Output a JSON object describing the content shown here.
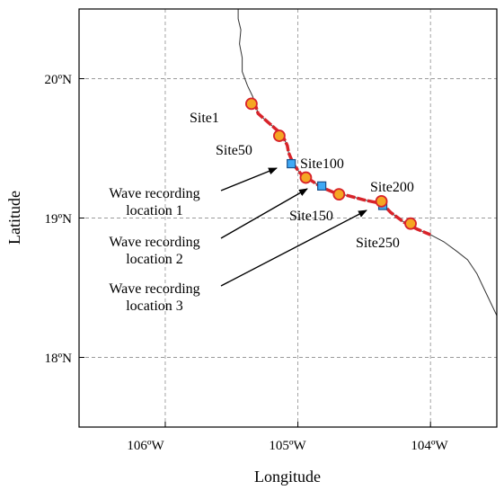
{
  "map": {
    "axes": {
      "xlabel": "Longitude",
      "ylabel": "Latitude",
      "xlim": [
        -106.65,
        -103.5
      ],
      "ylim": [
        17.5,
        20.5
      ],
      "x_ticks": [
        {
          "value": -106,
          "label": "106ºW"
        },
        {
          "value": -105,
          "label": "105ºW"
        },
        {
          "value": -104,
          "label": "104ºW"
        }
      ],
      "y_ticks": [
        {
          "value": 20,
          "label": "20ºN"
        },
        {
          "value": 19,
          "label": "19ºN"
        },
        {
          "value": 18,
          "label": "18ºN"
        }
      ],
      "grid": true
    },
    "colors": {
      "coastline": "#333333",
      "monitored_coast": "#d8232a",
      "site_fill": "#f5a623",
      "site_stroke": "#d8232a",
      "wave_marker_fill": "#3fa9f5",
      "wave_marker_stroke": "#1a4f8a"
    },
    "coastline": [
      [
        -105.45,
        20.5
      ],
      [
        -105.45,
        20.43
      ],
      [
        -105.43,
        20.35
      ],
      [
        -105.44,
        20.25
      ],
      [
        -105.42,
        20.15
      ],
      [
        -105.42,
        20.05
      ],
      [
        -105.38,
        19.95
      ],
      [
        -105.34,
        19.87
      ],
      [
        -105.3,
        19.75
      ],
      [
        -105.18,
        19.65
      ],
      [
        -105.12,
        19.6
      ],
      [
        -105.08,
        19.52
      ],
      [
        -105.07,
        19.47
      ],
      [
        -105.03,
        19.38
      ],
      [
        -104.98,
        19.32
      ],
      [
        -104.9,
        19.27
      ],
      [
        -104.82,
        19.22
      ],
      [
        -104.72,
        19.18
      ],
      [
        -104.62,
        19.16
      ],
      [
        -104.5,
        19.13
      ],
      [
        -104.4,
        19.11
      ],
      [
        -104.35,
        19.09
      ],
      [
        -104.3,
        19.04
      ],
      [
        -104.2,
        18.97
      ],
      [
        -104.1,
        18.92
      ],
      [
        -104.0,
        18.88
      ],
      [
        -103.9,
        18.83
      ],
      [
        -103.8,
        18.76
      ],
      [
        -103.72,
        18.7
      ],
      [
        -103.65,
        18.6
      ],
      [
        -103.6,
        18.5
      ],
      [
        -103.55,
        18.4
      ],
      [
        -103.5,
        18.3
      ]
    ],
    "monitored_coast": [
      [
        -105.33,
        19.84
      ],
      [
        -105.3,
        19.75
      ],
      [
        -105.18,
        19.65
      ],
      [
        -105.12,
        19.6
      ],
      [
        -105.08,
        19.52
      ],
      [
        -105.07,
        19.47
      ],
      [
        -105.03,
        19.38
      ],
      [
        -104.98,
        19.32
      ],
      [
        -104.9,
        19.27
      ],
      [
        -104.82,
        19.22
      ],
      [
        -104.72,
        19.18
      ],
      [
        -104.62,
        19.16
      ],
      [
        -104.5,
        19.13
      ],
      [
        -104.4,
        19.11
      ],
      [
        -104.35,
        19.09
      ],
      [
        -104.3,
        19.04
      ],
      [
        -104.2,
        18.97
      ],
      [
        -104.1,
        18.92
      ],
      [
        -104.0,
        18.88
      ]
    ],
    "sites": [
      {
        "name": "Site1",
        "lon": -105.35,
        "lat": 19.82
      },
      {
        "name": "Site50",
        "lon": -105.14,
        "lat": 19.59
      },
      {
        "name": "Site100",
        "lon": -104.94,
        "lat": 19.29
      },
      {
        "name": "Site150",
        "lon": -104.69,
        "lat": 19.17
      },
      {
        "name": "Site200",
        "lon": -104.37,
        "lat": 19.12
      },
      {
        "name": "Site250",
        "lon": -104.15,
        "lat": 18.96
      }
    ],
    "wave_locations": [
      {
        "label_line1": "Wave recording",
        "label_line2": "location 1",
        "lon": -105.05,
        "lat": 19.39
      },
      {
        "label_line1": "Wave recording",
        "label_line2": "location 2",
        "lon": -104.82,
        "lat": 19.23
      },
      {
        "label_line1": "Wave recording",
        "label_line2": "location 3",
        "lon": -104.36,
        "lat": 19.09
      }
    ]
  }
}
